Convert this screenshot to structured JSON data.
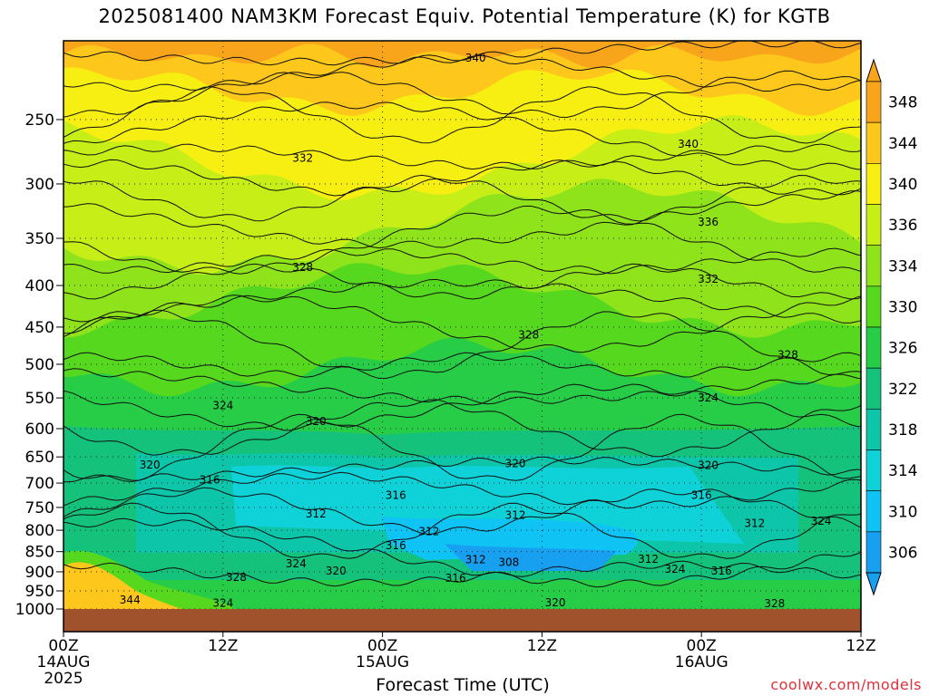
{
  "chart_data": {
    "type": "heatmap",
    "title": "2025081400 NAM3KM Forecast Equiv. Potential Temperature (K) for KGTB",
    "xlabel": "Forecast Time (UTC)",
    "ylabel": "",
    "x_ticks": [
      {
        "label": "00Z",
        "sub": "14AUG",
        "sub2": "2025",
        "hour": 0
      },
      {
        "label": "12Z",
        "sub": "",
        "sub2": "",
        "hour": 12
      },
      {
        "label": "00Z",
        "sub": "15AUG",
        "sub2": "",
        "hour": 24
      },
      {
        "label": "12Z",
        "sub": "",
        "sub2": "",
        "hour": 36
      },
      {
        "label": "00Z",
        "sub": "16AUG",
        "sub2": "",
        "hour": 48
      },
      {
        "label": "12Z",
        "sub": "",
        "sub2": "",
        "hour": 60
      }
    ],
    "xlim": [
      0,
      60
    ],
    "y_ticks": [
      250,
      300,
      350,
      400,
      450,
      500,
      550,
      600,
      650,
      700,
      750,
      800,
      850,
      900,
      950,
      1000
    ],
    "ylim": [
      200,
      1000
    ],
    "y_scale": "log-pressure",
    "grid": true,
    "colorbar": {
      "labels": [
        348,
        344,
        340,
        336,
        334,
        330,
        326,
        322,
        318,
        314,
        310,
        306
      ],
      "colors": [
        "#f9a51c",
        "#fdc71b",
        "#f7ef12",
        "#c8ee18",
        "#8fe31b",
        "#55d81e",
        "#27cc47",
        "#14c27b",
        "#0dc6aa",
        "#0fd2d8",
        "#0fc3f5",
        "#17a0f0"
      ]
    },
    "contour_labels": [
      {
        "value": "340",
        "hour": 31,
        "p": 210
      },
      {
        "value": "340",
        "hour": 47,
        "p": 268
      },
      {
        "value": "332",
        "hour": 18,
        "p": 279
      },
      {
        "value": "336",
        "hour": 48.5,
        "p": 334
      },
      {
        "value": "328",
        "hour": 18,
        "p": 380
      },
      {
        "value": "332",
        "hour": 48.5,
        "p": 393
      },
      {
        "value": "328",
        "hour": 35,
        "p": 460
      },
      {
        "value": "328",
        "hour": 54.5,
        "p": 487
      },
      {
        "value": "324",
        "hour": 12,
        "p": 562
      },
      {
        "value": "324",
        "hour": 48.5,
        "p": 550
      },
      {
        "value": "320",
        "hour": 19,
        "p": 588
      },
      {
        "value": "320",
        "hour": 6.5,
        "p": 665
      },
      {
        "value": "320",
        "hour": 34,
        "p": 662
      },
      {
        "value": "320",
        "hour": 48.5,
        "p": 666
      },
      {
        "value": "316",
        "hour": 11,
        "p": 694
      },
      {
        "value": "316",
        "hour": 25,
        "p": 725
      },
      {
        "value": "316",
        "hour": 48,
        "p": 725
      },
      {
        "value": "312",
        "hour": 19,
        "p": 764
      },
      {
        "value": "312",
        "hour": 34,
        "p": 767
      },
      {
        "value": "312",
        "hour": 27.5,
        "p": 803
      },
      {
        "value": "312",
        "hour": 52,
        "p": 785
      },
      {
        "value": "316",
        "hour": 25,
        "p": 835
      },
      {
        "value": "312",
        "hour": 31,
        "p": 870
      },
      {
        "value": "308",
        "hour": 33.5,
        "p": 876
      },
      {
        "value": "312",
        "hour": 44,
        "p": 868
      },
      {
        "value": "324",
        "hour": 17.5,
        "p": 880
      },
      {
        "value": "320",
        "hour": 20.5,
        "p": 898
      },
      {
        "value": "328",
        "hour": 13,
        "p": 914
      },
      {
        "value": "316",
        "hour": 29.5,
        "p": 916
      },
      {
        "value": "324",
        "hour": 46,
        "p": 893
      },
      {
        "value": "316",
        "hour": 49.5,
        "p": 898
      },
      {
        "value": "324",
        "hour": 57,
        "p": 780
      },
      {
        "value": "344",
        "hour": 5,
        "p": 975
      },
      {
        "value": "324",
        "hour": 12,
        "p": 984
      },
      {
        "value": "320",
        "hour": 37,
        "p": 982
      },
      {
        "value": "328",
        "hour": 53.5,
        "p": 985
      }
    ]
  },
  "footer": {
    "credit": "coolwx.com/models"
  }
}
